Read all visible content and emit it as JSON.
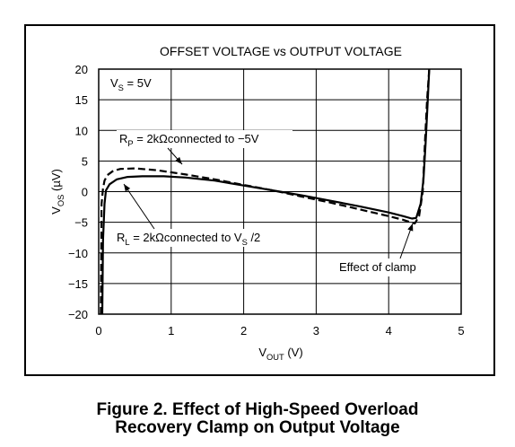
{
  "chart_data": {
    "type": "line",
    "title": "OFFSET VOLTAGE vs OUTPUT VOLTAGE",
    "xlabel": {
      "main": "V",
      "sub": "OUT",
      "rest": " (V)"
    },
    "ylabel": {
      "main": "V",
      "sub": "OS",
      "rest": " (µV)"
    },
    "xlim": [
      0,
      5
    ],
    "ylim": [
      -20,
      20
    ],
    "xticks": [
      "0",
      "1",
      "2",
      "3",
      "4",
      "5"
    ],
    "yticks": [
      "20",
      "15",
      "10",
      "5",
      "0",
      "−5",
      "−10",
      "−15",
      "−20"
    ],
    "grid": true,
    "series": [
      {
        "style": "dashed",
        "x": [
          0.03,
          0.04,
          0.06,
          0.08,
          0.12,
          0.2,
          0.3,
          0.5,
          0.8,
          1.2,
          1.6,
          2.0,
          2.4,
          2.8,
          3.2,
          3.6,
          4.0,
          4.2,
          4.3,
          4.36,
          4.42,
          4.47,
          4.5,
          4.53,
          4.56
        ],
        "y": [
          -20,
          -2,
          0.5,
          1.8,
          2.7,
          3.4,
          3.7,
          3.8,
          3.5,
          2.8,
          2.0,
          1.1,
          0.2,
          -0.8,
          -1.8,
          -2.9,
          -4.0,
          -4.6,
          -5.0,
          -5.2,
          -4.0,
          0.0,
          8.0,
          15.0,
          20.0
        ]
      },
      {
        "style": "solid",
        "x": [
          0.05,
          0.06,
          0.08,
          0.1,
          0.15,
          0.25,
          0.4,
          0.6,
          0.9,
          1.2,
          1.6,
          2.0,
          2.4,
          2.8,
          3.2,
          3.6,
          4.0,
          4.2,
          4.32,
          4.38,
          4.44,
          4.48,
          4.51,
          4.54,
          4.56
        ],
        "y": [
          -20,
          -8,
          -2,
          0.2,
          1.2,
          2.0,
          2.4,
          2.5,
          2.5,
          2.3,
          1.8,
          1.0,
          0.2,
          -0.6,
          -1.5,
          -2.4,
          -3.4,
          -4.0,
          -4.4,
          -4.3,
          -2.0,
          2.0,
          8.0,
          15.0,
          20.0
        ]
      }
    ],
    "annotations": [
      {
        "id": "vs",
        "parts": [
          {
            "t": "V"
          },
          {
            "t": "S",
            "sub": true
          },
          {
            "t": " = 5V"
          }
        ]
      },
      {
        "id": "rp",
        "parts": [
          {
            "t": "R"
          },
          {
            "t": "P",
            "sub": true
          },
          {
            "t": " = 2kΩconnected to −5V"
          }
        ]
      },
      {
        "id": "rl",
        "parts": [
          {
            "t": "R"
          },
          {
            "t": "L",
            "sub": true
          },
          {
            "t": " = 2kΩconnected to V"
          },
          {
            "t": "S",
            "sub": true
          },
          {
            "t": " /2"
          }
        ]
      },
      {
        "id": "clamp",
        "parts": [
          {
            "t": "Effect of clamp"
          }
        ]
      }
    ]
  },
  "caption": {
    "line1": "Figure 2. Effect of High-Speed Overload",
    "line2": "Recovery Clamp on Output Voltage"
  }
}
